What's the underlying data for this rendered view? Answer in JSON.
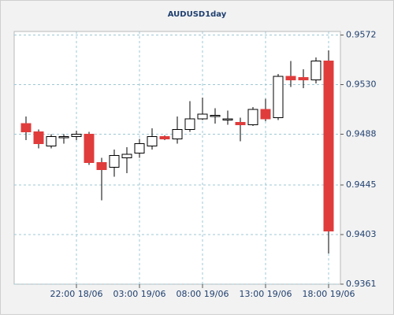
{
  "chart_data": {
    "type": "candlestick",
    "title": "AUDUSD1day",
    "categories": [
      null,
      null,
      null,
      null,
      "22:00 18/06",
      null,
      null,
      null,
      null,
      "03:00 19/06",
      null,
      null,
      null,
      null,
      "08:00 19/06",
      null,
      null,
      null,
      null,
      "13:00 19/06",
      null,
      null,
      null,
      null,
      "18:00 19/06"
    ],
    "open": [
      0.9497,
      0.949,
      0.9478,
      0.9485,
      0.9486,
      0.9488,
      0.9464,
      0.946,
      0.9468,
      0.9472,
      0.9478,
      0.9486,
      0.9484,
      0.9492,
      0.9501,
      0.9503,
      0.95,
      0.9498,
      0.9496,
      0.9509,
      0.9502,
      0.9537,
      0.9536,
      0.9534,
      0.955
    ],
    "high": [
      0.9503,
      0.9492,
      0.9488,
      0.9488,
      0.9491,
      0.949,
      0.9468,
      0.9475,
      0.9477,
      0.9484,
      0.9493,
      0.9487,
      0.9503,
      0.9516,
      0.9519,
      0.951,
      0.9508,
      0.9502,
      0.9511,
      0.9518,
      0.9539,
      0.955,
      0.9543,
      0.9553,
      0.9559
    ],
    "low": [
      0.9483,
      0.9476,
      0.9476,
      0.948,
      0.9483,
      0.9462,
      0.9432,
      0.9452,
      0.9455,
      0.9468,
      0.9475,
      0.9483,
      0.948,
      0.949,
      0.95,
      0.9497,
      0.9496,
      0.9482,
      0.9495,
      0.9499,
      0.95,
      0.9528,
      0.9527,
      0.9531,
      0.9387
    ],
    "close": [
      0.949,
      0.948,
      0.9486,
      0.9486,
      0.9488,
      0.9464,
      0.9458,
      0.947,
      0.9471,
      0.948,
      0.9486,
      0.9484,
      0.9492,
      0.9501,
      0.9505,
      0.9504,
      0.9501,
      0.9496,
      0.9509,
      0.9501,
      0.9537,
      0.9534,
      0.9534,
      0.955,
      0.9406
    ],
    "up_color": "#ffffff",
    "down_color": "#e03c3c",
    "ylim": [
      0.9361,
      0.9575
    ],
    "yticks": [
      0.9361,
      0.9403,
      0.9445,
      0.9488,
      {
        "value": 0.953,
        "label": "0.9530"
      },
      0.9572
    ],
    "grid": true
  }
}
